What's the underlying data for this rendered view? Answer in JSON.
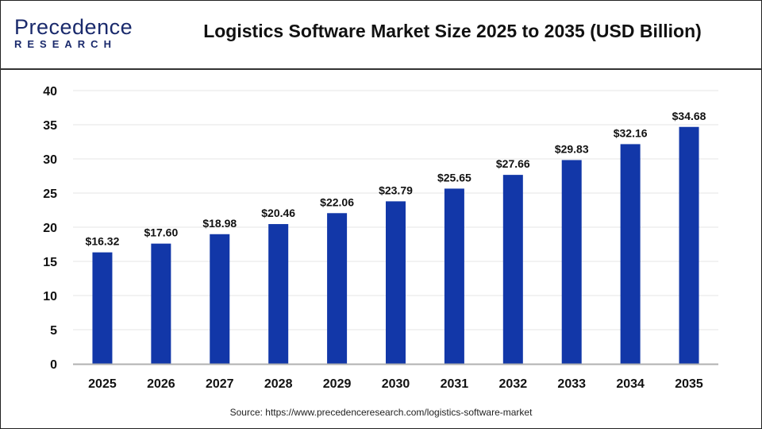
{
  "header": {
    "logo_line1": "Precedence",
    "logo_line2": "RESEARCH",
    "title": "Logistics Software Market Size 2025 to 2035 (USD Billion)"
  },
  "source": "Source: https://www.precedenceresearch.com/logistics-software-market",
  "colors": {
    "bar": "#1237A8",
    "grid": "#e6e6e6",
    "axis": "#b0b0b0"
  },
  "chart_data": {
    "type": "bar",
    "title": "Logistics Software Market Size 2025 to 2035 (USD Billion)",
    "categories": [
      "2025",
      "2026",
      "2027",
      "2028",
      "2029",
      "2030",
      "2031",
      "2032",
      "2033",
      "2034",
      "2035"
    ],
    "values": [
      16.32,
      17.6,
      18.98,
      20.46,
      22.06,
      23.79,
      25.65,
      27.66,
      29.83,
      32.16,
      34.68
    ],
    "data_labels": [
      "$16.32",
      "$17.60",
      "$18.98",
      "$20.46",
      "$22.06",
      "$23.79",
      "$25.65",
      "$27.66",
      "$29.83",
      "$32.16",
      "$34.68"
    ],
    "yticks": [
      "0",
      "5",
      "10",
      "15",
      "20",
      "25",
      "30",
      "35",
      "40"
    ],
    "ylim": [
      0,
      40
    ],
    "grid": true,
    "xlabel": "",
    "ylabel": ""
  }
}
